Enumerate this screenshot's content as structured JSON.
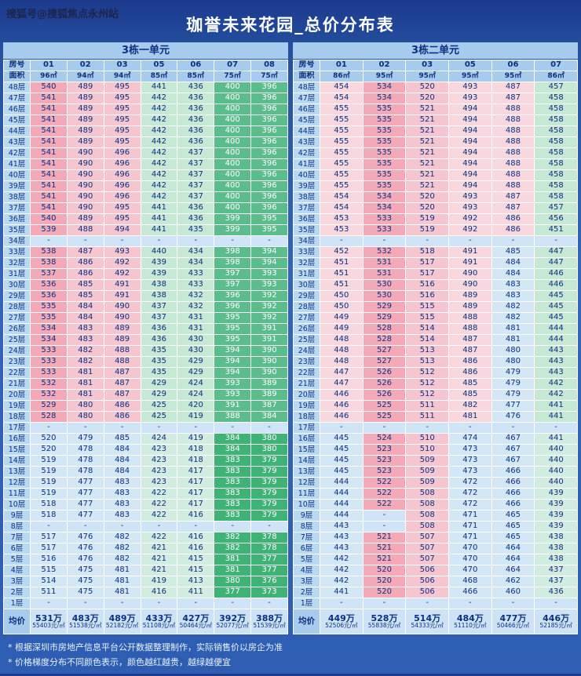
{
  "watermark": "搜狐号@搜狐焦点永州站",
  "title": "珈誉未来花园_总价分布表",
  "notes": [
    "* 根据深圳市房地产信息平台公开数据整理制作，实际销售价以房企为准",
    "* 价格梯度分布不同颜色表示，颜色越红越贵，越绿越便宜"
  ],
  "palette": {
    "pink": "#f3a9b8",
    "lightpink": "#f6c6d0",
    "palepink": "#f8d8de",
    "paleblue": "#d3e7f7",
    "mint": "#c6e8d5",
    "paleteal": "#d3ece1",
    "green": "#5bbd8b",
    "brightgreen": "#3fb276",
    "blank": "#cfe4f6",
    "header_bg": "#a6cbec",
    "floor_bg": "#b9d8f1",
    "avg_bg": "#cde3f5",
    "text_dark": "#0d2f7e",
    "text_light": "#ffffff"
  },
  "chart_data": [
    {
      "type": "table",
      "name": "3栋一单元",
      "header": {
        "room": "房号",
        "area": "面积"
      },
      "columns": [
        "01",
        "02",
        "03",
        "05",
        "06",
        "07",
        "08"
      ],
      "areas": [
        "96㎡",
        "94㎡",
        "94㎡",
        "85㎡",
        "85㎡",
        "75㎡",
        "75㎡"
      ],
      "column_colors": [
        [
          "pink",
          "pink",
          "paleblue"
        ],
        [
          "lightpink",
          "lightpink",
          "paleblue"
        ],
        [
          "lightpink",
          "lightpink",
          "paleblue"
        ],
        [
          "mint",
          "mint",
          "paleteal"
        ],
        [
          "mint",
          "mint",
          "paleteal"
        ],
        [
          "green",
          "green",
          "brightgreen"
        ],
        [
          "green",
          "green",
          "brightgreen"
        ]
      ],
      "rows": [
        [
          "48层",
          540,
          489,
          495,
          441,
          436,
          400,
          396
        ],
        [
          "47层",
          541,
          489,
          495,
          442,
          436,
          400,
          396
        ],
        [
          "46层",
          541,
          489,
          495,
          442,
          436,
          400,
          396
        ],
        [
          "45层",
          541,
          489,
          495,
          442,
          436,
          400,
          396
        ],
        [
          "44层",
          541,
          489,
          495,
          442,
          436,
          400,
          396
        ],
        [
          "43层",
          541,
          489,
          495,
          442,
          436,
          400,
          396
        ],
        [
          "42层",
          541,
          490,
          496,
          442,
          437,
          400,
          396
        ],
        [
          "41层",
          541,
          490,
          496,
          442,
          437,
          400,
          396
        ],
        [
          "40层",
          541,
          490,
          496,
          442,
          437,
          400,
          396
        ],
        [
          "39层",
          541,
          490,
          496,
          442,
          437,
          400,
          396
        ],
        [
          "38层",
          541,
          490,
          496,
          442,
          437,
          400,
          396
        ],
        [
          "37层",
          541,
          490,
          495,
          441,
          436,
          400,
          396
        ],
        [
          "36层",
          540,
          489,
          495,
          441,
          436,
          399,
          395
        ],
        [
          "35层",
          539,
          488,
          494,
          441,
          435,
          399,
          395
        ],
        [
          "34层",
          "-",
          "-",
          "-",
          "-",
          "-",
          "-",
          "-"
        ],
        [
          "33层",
          538,
          487,
          493,
          440,
          434,
          398,
          394
        ],
        [
          "32层",
          538,
          486,
          492,
          439,
          434,
          398,
          394
        ],
        [
          "31层",
          537,
          486,
          492,
          439,
          433,
          397,
          393
        ],
        [
          "30层",
          536,
          485,
          491,
          438,
          433,
          397,
          393
        ],
        [
          "29层",
          536,
          485,
          491,
          438,
          432,
          396,
          392
        ],
        [
          "28层",
          535,
          484,
          490,
          437,
          432,
          396,
          392
        ],
        [
          "27层",
          535,
          484,
          490,
          437,
          431,
          395,
          392
        ],
        [
          "26层",
          534,
          483,
          489,
          436,
          431,
          395,
          391
        ],
        [
          "25层",
          534,
          483,
          489,
          436,
          430,
          395,
          391
        ],
        [
          "24层",
          533,
          482,
          488,
          435,
          430,
          394,
          390
        ],
        [
          "23层",
          533,
          482,
          488,
          435,
          429,
          394,
          390
        ],
        [
          "22层",
          533,
          481,
          487,
          435,
          429,
          394,
          390
        ],
        [
          "21层",
          532,
          481,
          487,
          429,
          424,
          393,
          389
        ],
        [
          "20层",
          532,
          481,
          487,
          429,
          424,
          393,
          389
        ],
        [
          "19层",
          529,
          480,
          486,
          425,
          420,
          391,
          387
        ],
        [
          "18层",
          528,
          480,
          486,
          425,
          419,
          388,
          384
        ],
        [
          "17层",
          "-",
          "-",
          "-",
          "-",
          "-",
          "-",
          "-"
        ],
        [
          "16层",
          520,
          479,
          485,
          424,
          419,
          384,
          380
        ],
        [
          "15层",
          520,
          478,
          484,
          423,
          418,
          384,
          380
        ],
        [
          "14层",
          519,
          478,
          484,
          423,
          418,
          383,
          379
        ],
        [
          "13层",
          519,
          478,
          484,
          423,
          417,
          383,
          379
        ],
        [
          "12层",
          519,
          477,
          483,
          423,
          417,
          383,
          379
        ],
        [
          "11层",
          519,
          477,
          483,
          422,
          417,
          383,
          379
        ],
        [
          "10层",
          518,
          477,
          483,
          422,
          417,
          383,
          379
        ],
        [
          "9层",
          518,
          477,
          483,
          422,
          416,
          383,
          379
        ],
        [
          "8层",
          "-",
          "-",
          "-",
          "-",
          "-",
          "-",
          "-"
        ],
        [
          "7层",
          517,
          476,
          482,
          422,
          416,
          382,
          378
        ],
        [
          "6层",
          517,
          476,
          482,
          421,
          416,
          382,
          378
        ],
        [
          "5层",
          516,
          476,
          482,
          421,
          415,
          381,
          377
        ],
        [
          "4层",
          515,
          475,
          481,
          421,
          415,
          381,
          377
        ],
        [
          "3层",
          514,
          475,
          481,
          419,
          413,
          380,
          376
        ],
        [
          "2层",
          511,
          475,
          481,
          416,
          411,
          377,
          373
        ],
        [
          "1层",
          "-",
          "-",
          "-",
          "-",
          "-",
          "-",
          "-"
        ]
      ],
      "avg": {
        "label": "均价",
        "totals": [
          "531万",
          "483万",
          "489万",
          "433万",
          "427万",
          "392万",
          "388万"
        ],
        "units": [
          "55403元/㎡",
          "51538元/㎡",
          "52182元/㎡",
          "51108元/㎡",
          "50464元/㎡",
          "52077元/㎡",
          "51539元/㎡"
        ]
      }
    },
    {
      "type": "table",
      "name": "3栋二单元",
      "header": {
        "room": "房号",
        "area": "面积"
      },
      "columns": [
        "01",
        "02",
        "03",
        "05",
        "06",
        "07"
      ],
      "areas": [
        "86㎡",
        "95㎡",
        "95㎡",
        "95㎡",
        "95㎡",
        "86㎡"
      ],
      "column_colors": [
        [
          "palepink",
          "palepink",
          "paleblue"
        ],
        [
          "pink",
          "pink",
          "pink"
        ],
        [
          "lightpink",
          "lightpink",
          "lightpink"
        ],
        [
          "palepink",
          "palepink",
          "paleblue"
        ],
        [
          "palepink",
          "paleblue",
          "paleblue"
        ],
        [
          "mint",
          "mint",
          "paleteal"
        ]
      ],
      "rows": [
        [
          "48层",
          454,
          534,
          520,
          493,
          487,
          457
        ],
        [
          "47层",
          454,
          534,
          520,
          493,
          487,
          458
        ],
        [
          "46层",
          455,
          535,
          521,
          494,
          488,
          458
        ],
        [
          "45层",
          455,
          535,
          521,
          494,
          488,
          458
        ],
        [
          "44层",
          455,
          535,
          521,
          494,
          488,
          458
        ],
        [
          "43层",
          455,
          535,
          521,
          494,
          488,
          458
        ],
        [
          "42层",
          455,
          535,
          521,
          494,
          488,
          458
        ],
        [
          "41层",
          455,
          535,
          521,
          494,
          488,
          458
        ],
        [
          "40层",
          455,
          535,
          521,
          494,
          488,
          458
        ],
        [
          "39层",
          455,
          535,
          521,
          494,
          488,
          458
        ],
        [
          "38层",
          454,
          534,
          520,
          493,
          487,
          458
        ],
        [
          "37层",
          454,
          534,
          520,
          493,
          487,
          457
        ],
        [
          "36层",
          453,
          533,
          519,
          492,
          486,
          456
        ],
        [
          "35层",
          453,
          533,
          519,
          492,
          486,
          451
        ],
        [
          "34层",
          "-",
          "-",
          "-",
          "-",
          "-",
          "-"
        ],
        [
          "33层",
          452,
          532,
          518,
          491,
          485,
          447
        ],
        [
          "32层",
          451,
          531,
          517,
          491,
          484,
          447
        ],
        [
          "31层",
          451,
          531,
          517,
          490,
          484,
          446
        ],
        [
          "30层",
          451,
          530,
          516,
          490,
          483,
          446
        ],
        [
          "29层",
          450,
          530,
          516,
          489,
          483,
          445
        ],
        [
          "28层",
          450,
          529,
          515,
          489,
          482,
          445
        ],
        [
          "27层",
          449,
          529,
          515,
          488,
          482,
          445
        ],
        [
          "26层",
          449,
          528,
          514,
          488,
          481,
          444
        ],
        [
          "25层",
          448,
          528,
          514,
          487,
          481,
          444
        ],
        [
          "24层",
          448,
          527,
          513,
          487,
          480,
          443
        ],
        [
          "23层",
          448,
          527,
          513,
          486,
          480,
          443
        ],
        [
          "22层",
          447,
          526,
          512,
          486,
          479,
          443
        ],
        [
          "21层",
          447,
          526,
          512,
          485,
          479,
          442
        ],
        [
          "20层",
          446,
          526,
          512,
          485,
          479,
          442
        ],
        [
          "19层",
          446,
          525,
          511,
          482,
          477,
          441
        ],
        [
          "18层",
          446,
          525,
          511,
          481,
          476,
          441
        ],
        [
          "17层",
          "-",
          "-",
          "-",
          "-",
          "-",
          "-"
        ],
        [
          "16层",
          445,
          524,
          510,
          474,
          467,
          441
        ],
        [
          "15层",
          445,
          523,
          510,
          473,
          467,
          440
        ],
        [
          "14层",
          445,
          523,
          509,
          473,
          467,
          440
        ],
        [
          "13层",
          445,
          523,
          509,
          473,
          466,
          440
        ],
        [
          "12层",
          444,
          522,
          509,
          472,
          466,
          440
        ],
        [
          "11层",
          444,
          522,
          508,
          472,
          466,
          439
        ],
        [
          "10层",
          444,
          522,
          508,
          472,
          466,
          439
        ],
        [
          "9层",
          444,
          "-",
          508,
          471,
          465,
          439
        ],
        [
          "8层",
          443,
          "-",
          508,
          471,
          465,
          439
        ],
        [
          "7层",
          443,
          521,
          507,
          471,
          465,
          438
        ],
        [
          "6层",
          443,
          521,
          507,
          470,
          464,
          438
        ],
        [
          "5层",
          442,
          521,
          507,
          470,
          464,
          438
        ],
        [
          "4层",
          442,
          520,
          506,
          470,
          464,
          437
        ],
        [
          "3层",
          442,
          520,
          506,
          468,
          462,
          437
        ],
        [
          "2层",
          441,
          520,
          506,
          466,
          460,
          436
        ],
        [
          "1层",
          "-",
          "-",
          "-",
          "-",
          "-",
          "-"
        ]
      ],
      "avg": {
        "label": "均价",
        "totals": [
          "449万",
          "528万",
          "514万",
          "484万",
          "477万",
          "446万"
        ],
        "units": [
          "52506元/㎡",
          "55838元/㎡",
          "54333元/㎡",
          "51110元/㎡",
          "50466元/㎡",
          "52185元/㎡"
        ]
      }
    }
  ]
}
